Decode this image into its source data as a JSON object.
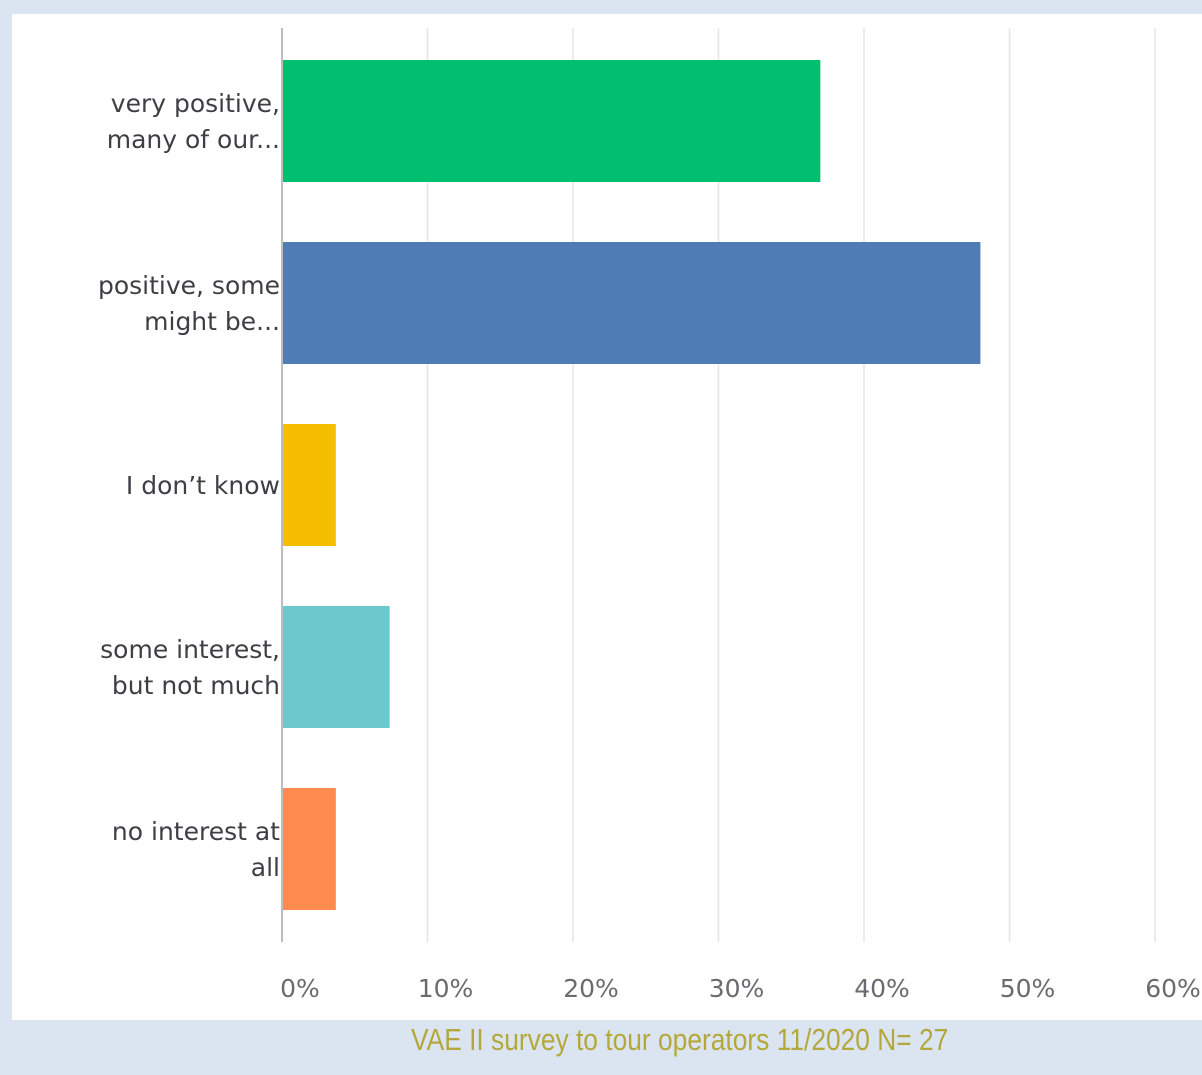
{
  "chart_data": {
    "type": "bar",
    "orientation": "horizontal",
    "categories": [
      [
        "very positive,",
        "many of our..."
      ],
      [
        "positive, some",
        "might be..."
      ],
      [
        "I don’t know"
      ],
      [
        "some interest,",
        "but not much"
      ],
      [
        "no interest at",
        "all"
      ]
    ],
    "values": [
      37,
      48,
      3.7,
      7.4,
      3.7
    ],
    "colors": [
      "#00bf6f",
      "#507cb6",
      "#f5be00",
      "#6bc8cd",
      "#ff8b4f"
    ],
    "xlim": [
      0,
      60
    ],
    "x_ticks": [
      "0%",
      "10%",
      "20%",
      "30%",
      "40%",
      "50%",
      "60%"
    ],
    "grid": true
  },
  "caption": "VAE II survey to tour operators 11/2020 N= 27"
}
